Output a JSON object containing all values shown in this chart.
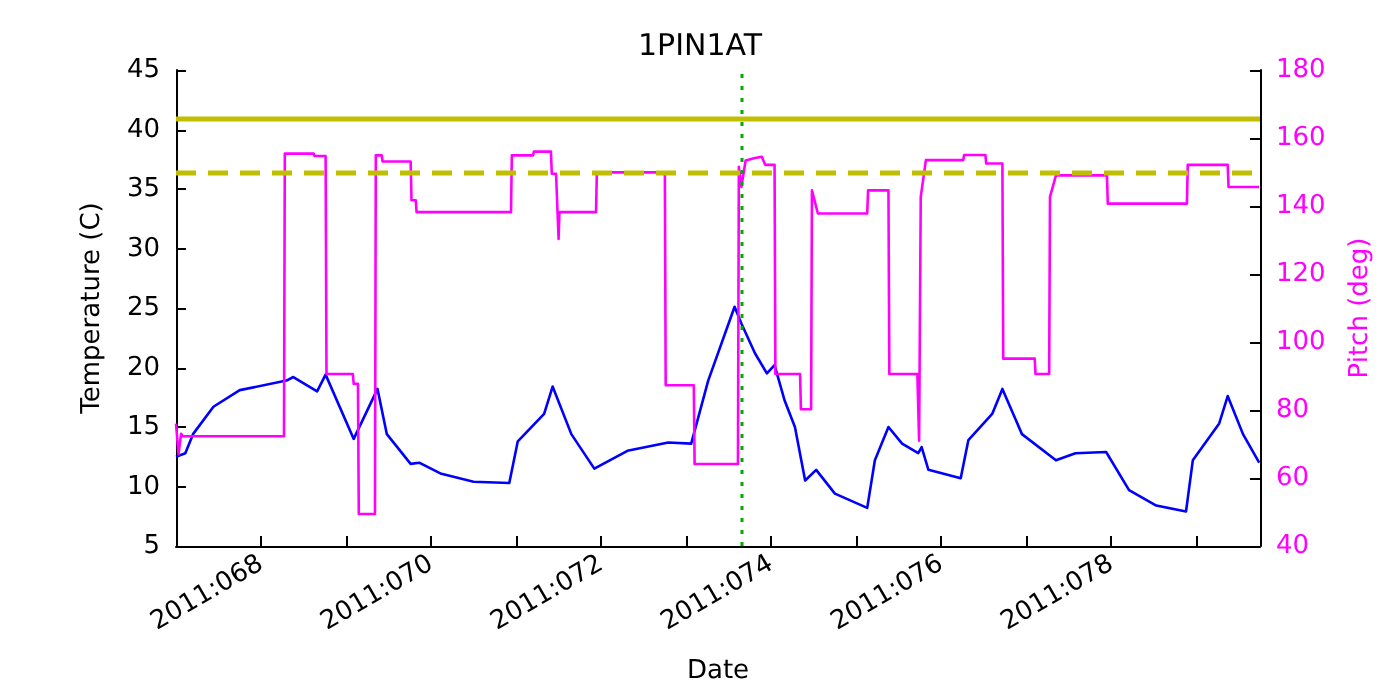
{
  "chart_data": {
    "type": "line",
    "title": "1PIN1AT",
    "xlabel": "Date",
    "ylabel": "Temperature (C)",
    "y2label": "Pitch (deg)",
    "xlim": [
      "2011-03-08T00:00",
      "2011-03-20T18:00"
    ],
    "xticks": [
      {
        "value": "2011-03-09",
        "label": "2011:068"
      },
      {
        "value": "2011-03-10",
        "label": null
      },
      {
        "value": "2011-03-11",
        "label": "2011:070"
      },
      {
        "value": "2011-03-12",
        "label": null
      },
      {
        "value": "2011-03-13",
        "label": "2011:072"
      },
      {
        "value": "2011-03-14",
        "label": null
      },
      {
        "value": "2011-03-15",
        "label": "2011:074"
      },
      {
        "value": "2011-03-16",
        "label": null
      },
      {
        "value": "2011-03-17",
        "label": "2011:076"
      },
      {
        "value": "2011-03-18",
        "label": null
      },
      {
        "value": "2011-03-19",
        "label": "2011:078"
      },
      {
        "value": "2011-03-20",
        "label": null
      }
    ],
    "ylim": [
      5,
      45
    ],
    "yticks": [
      5,
      10,
      15,
      20,
      25,
      30,
      35,
      40,
      45
    ],
    "y2lim": [
      40,
      180
    ],
    "y2ticks": [
      40,
      60,
      80,
      100,
      120,
      140,
      160,
      180
    ],
    "grid": false,
    "marker": "none",
    "series": [
      {
        "color": "#0000ff",
        "line_style": "solid",
        "x": [
          "2011-03-08T00:00",
          "2011-03-08T02:38",
          "2011-03-08T04:48",
          "2011-03-08T10:34",
          "2011-03-08T18:00",
          "2011-03-09T07:12",
          "2011-03-09T09:07",
          "2011-03-09T15:50",
          "2011-03-09T18:14",
          "2011-03-10T02:10",
          "2011-03-10T08:53",
          "2011-03-10T11:31",
          "2011-03-10T18:14",
          "2011-03-10T20:38",
          "2011-03-11T02:38",
          "2011-03-11T12:00",
          "2011-03-11T22:05",
          "2011-03-12T00:29",
          "2011-03-12T07:55",
          "2011-03-12T10:19",
          "2011-03-12T15:36",
          "2011-03-12T22:05",
          "2011-03-13T07:26",
          "2011-03-13T18:58",
          "2011-03-14T01:26",
          "2011-03-14T06:14",
          "2011-03-14T13:41",
          "2011-03-14T15:36",
          "2011-03-14T19:26",
          "2011-03-14T22:48",
          "2011-03-15T00:58",
          "2011-03-15T03:50",
          "2011-03-15T06:43",
          "2011-03-15T09:36",
          "2011-03-15T12:43",
          "2011-03-15T18:00",
          "2011-03-16T03:07",
          "2011-03-16T05:17",
          "2011-03-16T09:07",
          "2011-03-16T12:58",
          "2011-03-16T17:31",
          "2011-03-16T18:29",
          "2011-03-16T20:24",
          "2011-03-17T05:31",
          "2011-03-17T07:41",
          "2011-03-17T14:24",
          "2011-03-17T17:17",
          "2011-03-17T22:48",
          "2011-03-18T08:24",
          "2011-03-18T13:55",
          "2011-03-18T22:34",
          "2011-03-19T05:02",
          "2011-03-19T12:43",
          "2011-03-19T21:07",
          "2011-03-19T23:02",
          "2011-03-20T06:29",
          "2011-03-20T08:53",
          "2011-03-20T13:12",
          "2011-03-20T17:46"
        ],
        "values": [
          12.5,
          12.8,
          14.4,
          16.7,
          18.1,
          18.9,
          19.2,
          18.0,
          19.4,
          14.0,
          18.2,
          14.4,
          11.9,
          12.0,
          11.1,
          10.4,
          10.3,
          13.8,
          16.1,
          18.4,
          14.4,
          11.5,
          13.0,
          13.7,
          13.6,
          18.9,
          25.1,
          23.7,
          21.2,
          19.5,
          20.2,
          17.2,
          15.0,
          10.5,
          11.4,
          9.4,
          8.2,
          12.2,
          15.0,
          13.6,
          12.8,
          13.3,
          11.4,
          10.7,
          13.9,
          16.1,
          18.2,
          14.4,
          12.2,
          12.8,
          12.9,
          9.7,
          8.4,
          7.9,
          12.2,
          15.3,
          17.6,
          14.4,
          12.0
        ]
      },
      {
        "color": "#ff00ff",
        "line_style": "solid",
        "axis": "y2",
        "x": [
          "2011-03-08T00:00",
          "2011-03-08T00:43",
          "2011-03-08T01:26",
          "2011-03-08T01:55",
          "2011-03-09T06:29",
          "2011-03-09T06:43",
          "2011-03-09T14:53",
          "2011-03-09T15:07",
          "2011-03-09T18:14",
          "2011-03-09T18:29",
          "2011-03-10T01:55",
          "2011-03-10T02:10",
          "2011-03-10T03:22",
          "2011-03-10T03:36",
          "2011-03-10T08:10",
          "2011-03-10T08:24",
          "2011-03-10T10:05",
          "2011-03-10T10:19",
          "2011-03-10T18:14",
          "2011-03-10T18:29",
          "2011-03-10T19:41",
          "2011-03-10T19:55",
          "2011-03-11T22:34",
          "2011-03-11T22:48",
          "2011-03-12T04:48",
          "2011-03-12T05:02",
          "2011-03-12T09:50",
          "2011-03-12T10:05",
          "2011-03-12T11:17",
          "2011-03-12T12:00",
          "2011-03-12T12:14",
          "2011-03-12T22:34",
          "2011-03-12T22:48",
          "2011-03-13T18:00",
          "2011-03-13T18:14",
          "2011-03-14T02:10",
          "2011-03-14T02:24",
          "2011-03-14T14:38",
          "2011-03-14T14:53",
          "2011-03-14T15:36",
          "2011-03-14T16:48",
          "2011-03-14T19:26",
          "2011-03-14T21:22",
          "2011-03-14T22:19",
          "2011-03-15T00:58",
          "2011-03-15T01:12",
          "2011-03-15T08:10",
          "2011-03-15T08:24",
          "2011-03-15T11:17",
          "2011-03-15T11:31",
          "2011-03-15T13:12",
          "2011-03-15T13:26",
          "2011-03-16T03:07",
          "2011-03-16T03:22",
          "2011-03-16T09:07",
          "2011-03-16T09:22",
          "2011-03-16T17:17",
          "2011-03-16T17:46",
          "2011-03-16T18:14",
          "2011-03-16T19:41",
          "2011-03-16T19:55",
          "2011-03-17T06:14",
          "2011-03-17T06:29",
          "2011-03-17T12:29",
          "2011-03-17T12:43",
          "2011-03-17T17:17",
          "2011-03-17T17:31",
          "2011-03-18T02:24",
          "2011-03-18T02:38",
          "2011-03-18T06:29",
          "2011-03-18T06:43",
          "2011-03-18T08:24",
          "2011-03-18T08:38",
          "2011-03-18T22:48",
          "2011-03-18T23:02",
          "2011-03-19T21:22",
          "2011-03-19T21:36",
          "2011-03-20T08:53",
          "2011-03-20T09:07",
          "2011-03-20T17:46"
        ],
        "values": [
          76,
          67,
          73,
          72.3,
          72.3,
          155.4,
          155.4,
          154.7,
          154.7,
          90.6,
          90.6,
          87.7,
          87.7,
          49.4,
          49.4,
          154.9,
          154.9,
          153.1,
          153.1,
          141.7,
          141.7,
          138.2,
          138.2,
          154.9,
          154.9,
          156,
          156,
          149.5,
          149.5,
          130.3,
          138.2,
          138.2,
          149.9,
          149.9,
          87.3,
          87.3,
          64.1,
          64.1,
          151.5,
          145.6,
          153.4,
          154.1,
          154.5,
          152.1,
          152.1,
          90.6,
          90.6,
          80.2,
          80.2,
          144.6,
          137.8,
          137.8,
          137.8,
          144.6,
          144.6,
          90.6,
          90.6,
          71,
          142.7,
          153.5,
          153.5,
          153.5,
          155,
          155,
          152.5,
          152.5,
          95.1,
          95.1,
          90.6,
          90.6,
          142.7,
          149,
          149,
          149,
          140.7,
          140.7,
          152.1,
          152.1,
          145.6,
          145.6
        ]
      }
    ],
    "ref_lines": [
      {
        "axis": "y2",
        "value": 166,
        "color": "#bfbf00",
        "line_style": "solid"
      },
      {
        "axis": "y2",
        "value": 150,
        "color": "#bfbf00",
        "line_style": "dashed"
      },
      {
        "axis": "x",
        "value": "2011-03-14T15:36",
        "color": "#00aa00",
        "line_style": "dotted"
      }
    ]
  }
}
